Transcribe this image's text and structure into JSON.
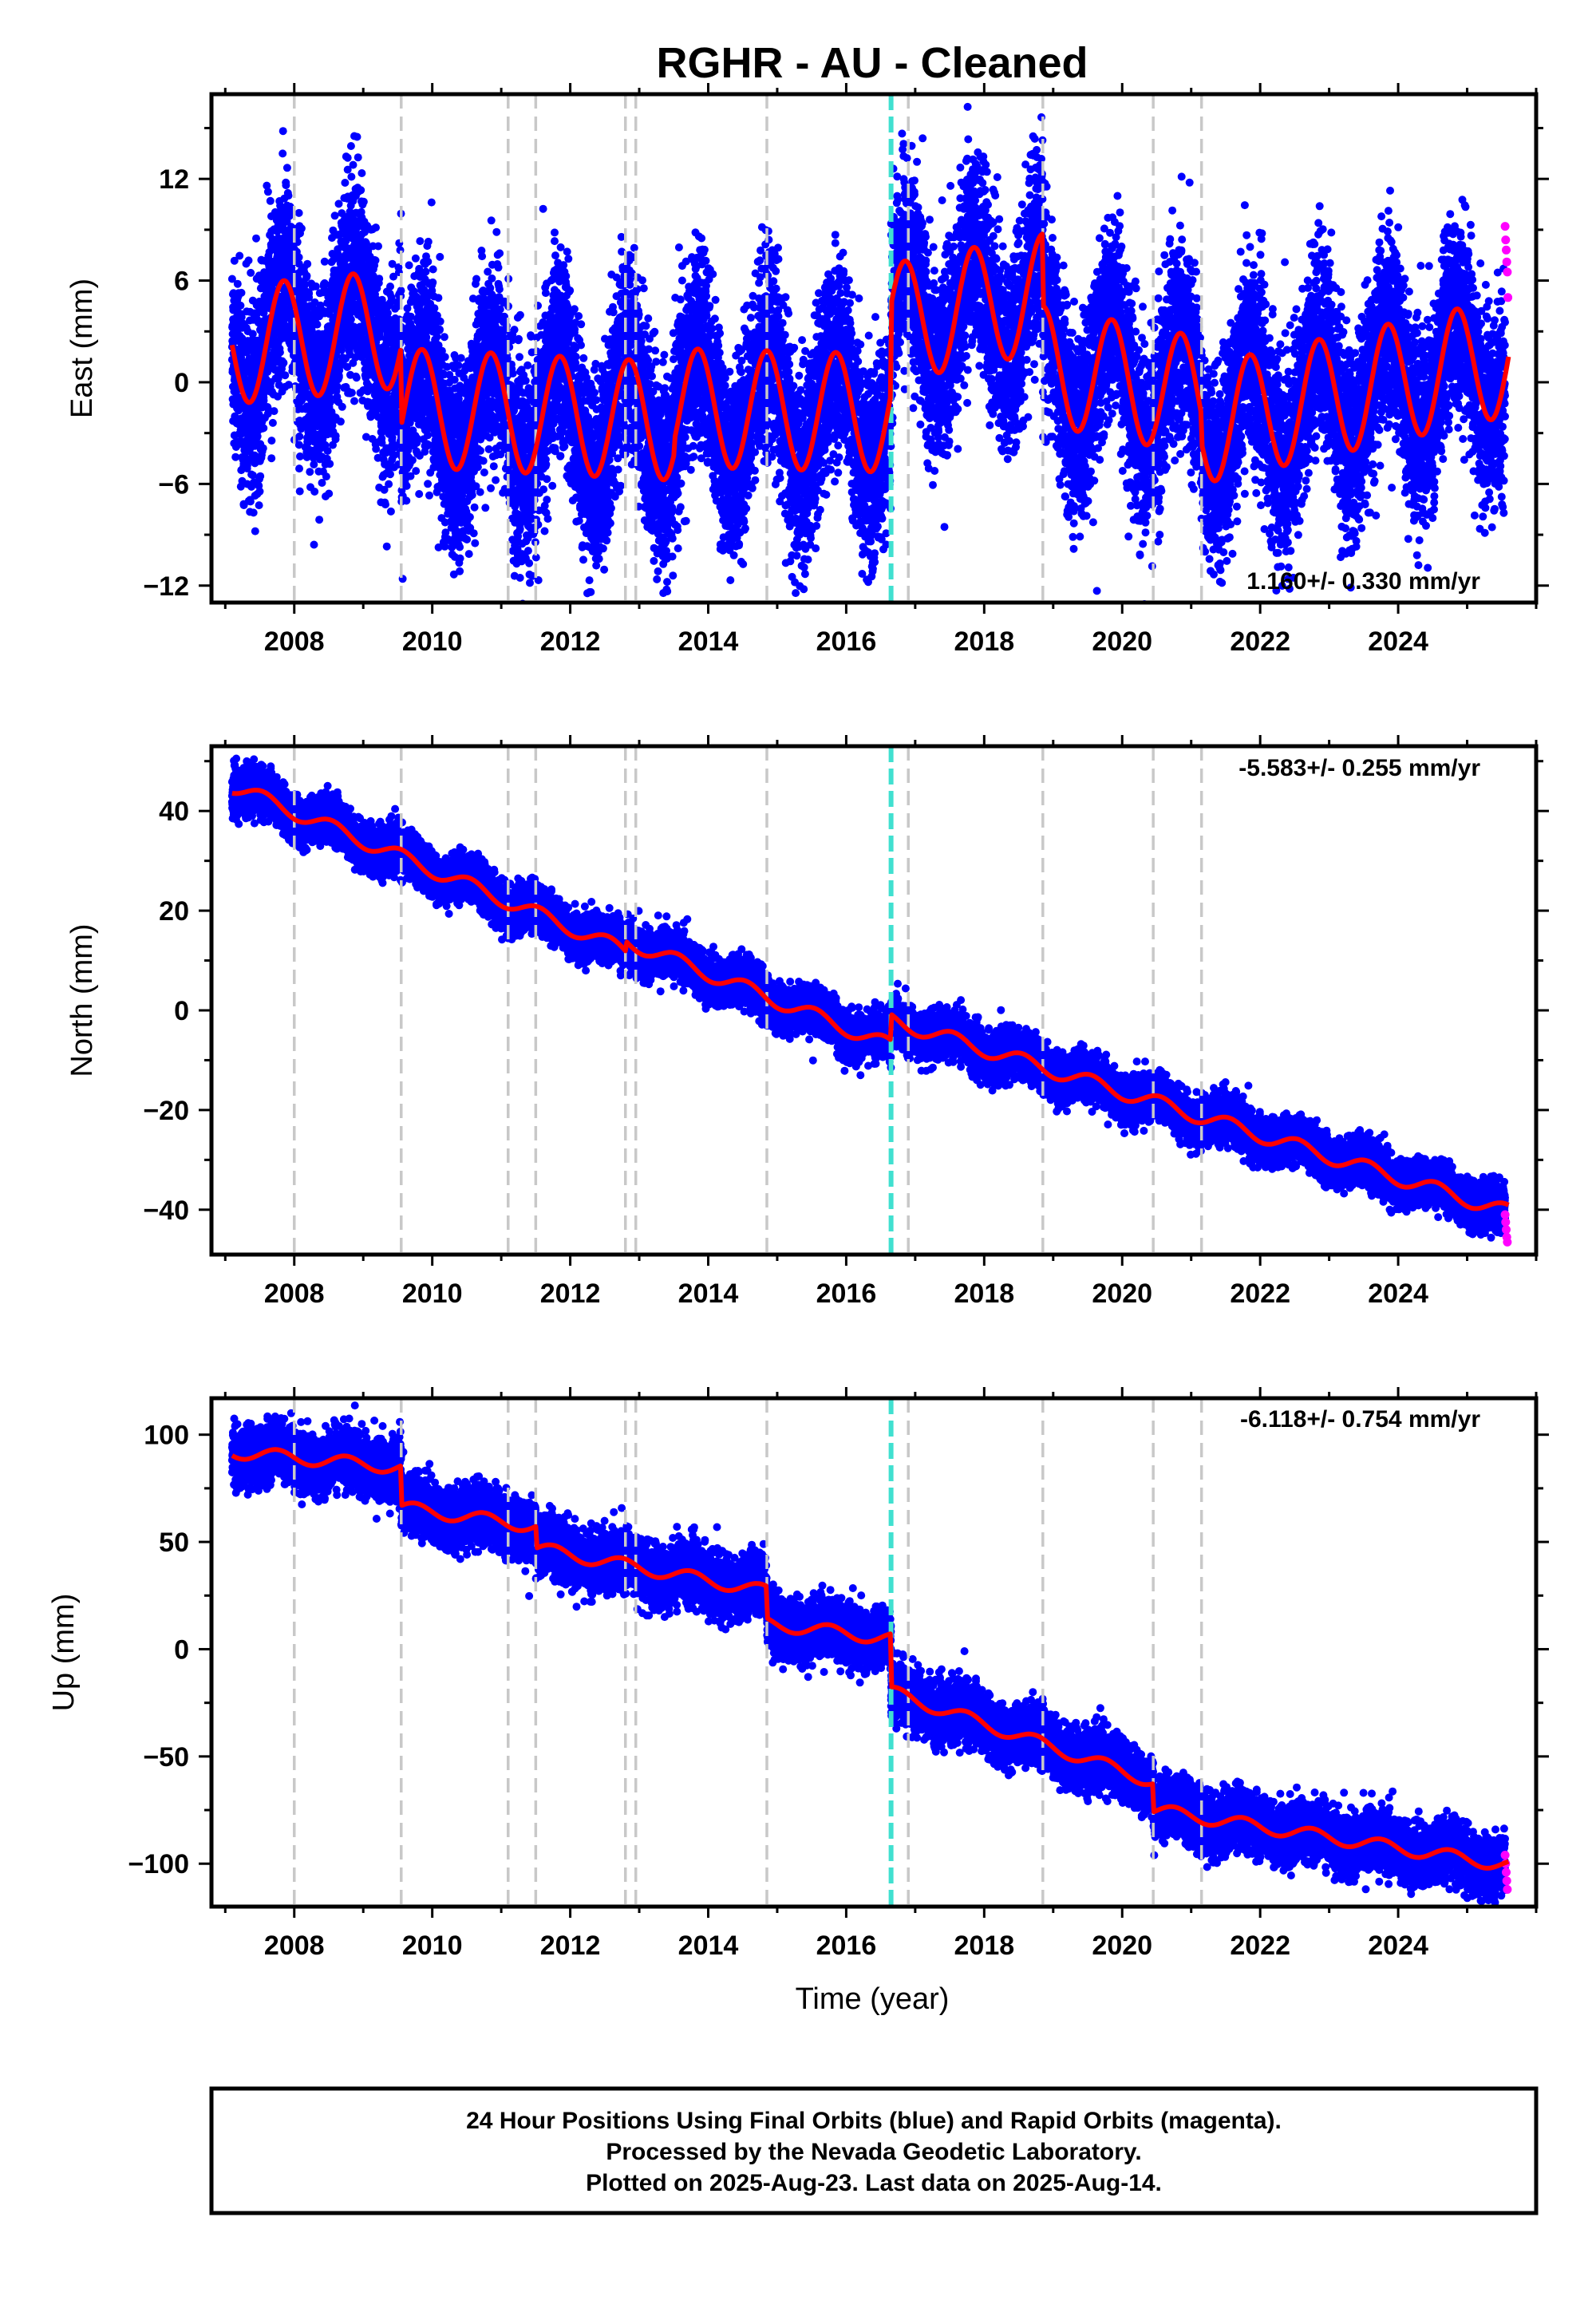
{
  "figure": {
    "title": "RGHR  - AU - Cleaned",
    "xlabel": "Time (year)",
    "caption": [
      "24 Hour Positions Using Final Orbits (blue) and Rapid Orbits (magenta).",
      "Processed by the Nevada Geodetic Laboratory.",
      "Plotted on 2025-Aug-23. Last data on 2025-Aug-14."
    ]
  },
  "colors": {
    "final_orbits": "#0000ff",
    "rapid_orbits": "#ff00ff",
    "model_fit": "#ff0000",
    "event_line": "#c8c8c8",
    "equipment_change": "#40e0d0"
  },
  "chart_data": [
    {
      "type": "scatter",
      "component": "east",
      "ylabel": "East (mm)",
      "xlim": [
        2006.8,
        2026.0
      ],
      "ylim": [
        -13,
        17
      ],
      "xticks": [
        2008,
        2010,
        2012,
        2014,
        2016,
        2018,
        2020,
        2022,
        2024
      ],
      "yticks": [
        -12,
        -6,
        0,
        6,
        12
      ],
      "rate_label": "1.160+/- 0.330 mm/yr",
      "event_lines": [
        2008.0,
        2009.55,
        2011.1,
        2011.5,
        2012.8,
        2012.95,
        2014.85,
        2016.9,
        2018.85,
        2020.45,
        2021.15
      ],
      "highlight_line": 2016.65,
      "model": {
        "start": 2007.1,
        "end": 2025.6,
        "step": 0.02,
        "seasonal_amplitude": 3.5,
        "seasonal_phase": 2007.6,
        "segments": [
          {
            "from": 2007.1,
            "to": 2009.55,
            "offset": 2.2,
            "trend": 0.4
          },
          {
            "from": 2009.55,
            "to": 2013.5,
            "offset": -1.5,
            "trend": -0.2
          },
          {
            "from": 2013.5,
            "to": 2016.65,
            "offset": -1.5,
            "trend": -0.1
          },
          {
            "from": 2016.65,
            "to": 2018.85,
            "offset": 3.5,
            "trend": 0.8
          },
          {
            "from": 2018.85,
            "to": 2021.15,
            "offset": 1.0,
            "trend": -0.8
          },
          {
            "from": 2021.15,
            "to": 2025.6,
            "offset": -2.5,
            "trend": 0.9
          }
        ]
      },
      "scatter": {
        "noise": 2.8,
        "density": 2.5,
        "rapid_from": 2025.55,
        "rapid_values": [
          9.2,
          8.4,
          7.8,
          7.1,
          6.5,
          5.0
        ]
      }
    },
    {
      "type": "scatter",
      "component": "north",
      "ylabel": "North (mm)",
      "xlim": [
        2006.8,
        2026.0
      ],
      "ylim": [
        -49,
        53
      ],
      "xticks": [
        2008,
        2010,
        2012,
        2014,
        2016,
        2018,
        2020,
        2022,
        2024
      ],
      "yticks": [
        -40,
        -20,
        0,
        20,
        40
      ],
      "rate_label": "-5.583+/- 0.255 mm/yr",
      "event_lines": [
        2008.0,
        2009.55,
        2011.1,
        2011.5,
        2012.8,
        2012.95,
        2014.85,
        2016.9,
        2018.85,
        2020.45,
        2021.15
      ],
      "highlight_line": 2016.65,
      "model": {
        "start": 2007.1,
        "end": 2025.6,
        "step": 0.02,
        "seasonal_amplitude": 1.5,
        "seasonal_phase": 2007.3,
        "segments": [
          {
            "from": 2007.1,
            "to": 2012.8,
            "offset": 45.0,
            "trend": -5.8
          },
          {
            "from": 2012.8,
            "to": 2016.65,
            "offset": 14.0,
            "trend": -5.5
          },
          {
            "from": 2016.65,
            "to": 2025.6,
            "offset": -2.0,
            "trend": -4.3
          }
        ]
      },
      "scatter": {
        "noise": 2.2,
        "density": 2.5,
        "rapid_from": 2025.55,
        "rapid_values": [
          -41,
          -42.5,
          -44,
          -45.5,
          -46.5
        ]
      }
    },
    {
      "type": "scatter",
      "component": "up",
      "ylabel": "Up (mm)",
      "xlim": [
        2006.8,
        2026.0
      ],
      "ylim": [
        -120,
        117
      ],
      "xticks": [
        2008,
        2010,
        2012,
        2014,
        2016,
        2018,
        2020,
        2022,
        2024
      ],
      "yticks": [
        -100,
        -50,
        0,
        50,
        100
      ],
      "rate_label": "-6.118+/- 0.754 mm/yr",
      "event_lines": [
        2008.0,
        2009.55,
        2011.1,
        2011.5,
        2012.8,
        2012.95,
        2014.85,
        2016.9,
        2018.85,
        2020.45,
        2021.15
      ],
      "highlight_line": 2016.65,
      "model": {
        "start": 2007.1,
        "end": 2025.6,
        "step": 0.02,
        "seasonal_amplitude": 3.0,
        "seasonal_phase": 2007.5,
        "segments": [
          {
            "from": 2007.1,
            "to": 2009.55,
            "offset": 92.0,
            "trend": -3.0
          },
          {
            "from": 2009.55,
            "to": 2011.5,
            "offset": 66.0,
            "trend": -4.5
          },
          {
            "from": 2011.5,
            "to": 2014.85,
            "offset": 47.0,
            "trend": -6.0
          },
          {
            "from": 2014.85,
            "to": 2016.65,
            "offset": 12.0,
            "trend": -4.0
          },
          {
            "from": 2016.65,
            "to": 2020.45,
            "offset": -20.0,
            "trend": -11.0
          },
          {
            "from": 2020.45,
            "to": 2025.6,
            "offset": -75.0,
            "trend": -5.0
          }
        ]
      },
      "scatter": {
        "noise": 6.5,
        "density": 2.5,
        "rapid_from": 2025.55,
        "rapid_values": [
          -96,
          -100,
          -104,
          -108,
          -112
        ]
      }
    }
  ]
}
